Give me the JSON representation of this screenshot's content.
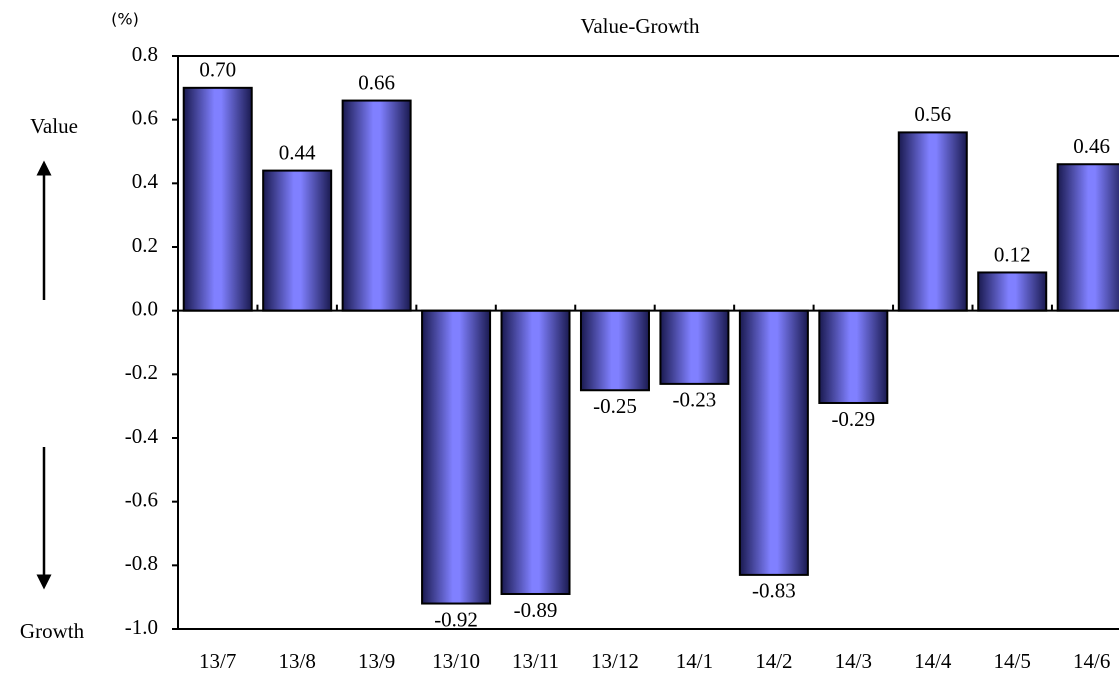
{
  "chart_data": {
    "type": "bar",
    "title": "Value-Growth",
    "unit": "(%)",
    "annotations": [
      "Value",
      "Growth"
    ],
    "categories": [
      "13/7",
      "13/8",
      "13/9",
      "13/10",
      "13/11",
      "13/12",
      "14/1",
      "14/2",
      "14/3",
      "14/4",
      "14/5",
      "14/6"
    ],
    "values": [
      0.7,
      0.44,
      0.66,
      -0.92,
      -0.89,
      -0.25,
      -0.23,
      -0.83,
      -0.29,
      0.56,
      0.12,
      0.46
    ],
    "value_labels": [
      "0.70",
      "0.44",
      "0.66",
      "-0.92",
      "-0.89",
      "-0.25",
      "-0.23",
      "-0.83",
      "-0.29",
      "0.56",
      "0.12",
      "0.46"
    ],
    "color": "#8080ff",
    "ylim": [
      -1.0,
      0.8
    ],
    "yticks": [
      {
        "value": -1.0,
        "label": "-1.0"
      },
      -0.8,
      -0.6,
      -0.4,
      -0.2,
      {
        "value": 0.0,
        "label": "0.0"
      },
      0.2,
      0.4,
      0.6,
      0.8
    ]
  }
}
